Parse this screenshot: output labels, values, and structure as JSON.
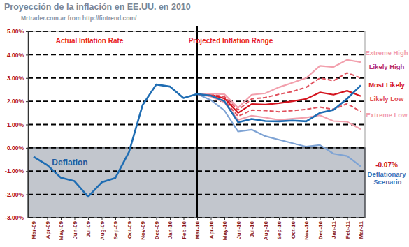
{
  "chart_data": {
    "type": "line",
    "title": "Proyección de la inflación en EE.UU. en 2010",
    "subtitle": "Mrtrader.com.ar from http://fintrend.com/",
    "categories": [
      "Mar-09",
      "Apr-09",
      "May-09",
      "Jun-09",
      "Jul-09",
      "Aug-09",
      "Sep-09",
      "Oct-09",
      "Nov-09",
      "Dec-09",
      "Jan-10",
      "Feb-10",
      "Mar-10",
      "Apr-10",
      "May-10",
      "Jun-10",
      "Jul-10",
      "Aug-10",
      "Sep-10",
      "Oct-10",
      "Nov-10",
      "Dec-10",
      "Jan-11",
      "Feb-11",
      "Mar-11"
    ],
    "series": [
      {
        "name": "Actual Inflation Rate",
        "color": "#1f6db3",
        "line_style": "solid",
        "values": [
          -0.38,
          -0.74,
          -1.28,
          -1.43,
          -2.1,
          -1.48,
          -1.29,
          -0.18,
          1.84,
          2.72,
          2.63,
          2.14,
          2.31,
          2.24,
          2.0,
          1.1,
          1.24,
          1.15,
          1.14,
          1.17,
          1.14,
          1.5,
          1.63,
          2.11,
          2.68
        ]
      },
      {
        "name": "Extreme High",
        "color": "#f2a0ad",
        "line_style": "solid",
        "values": [
          null,
          null,
          null,
          null,
          null,
          null,
          null,
          null,
          null,
          null,
          null,
          null,
          2.31,
          2.33,
          2.3,
          1.72,
          2.28,
          2.34,
          2.6,
          2.8,
          3.0,
          3.52,
          3.47,
          3.78,
          3.68
        ]
      },
      {
        "name": "Likely High",
        "color": "#e0505c",
        "line_style": "dashed",
        "values": [
          null,
          null,
          null,
          null,
          null,
          null,
          null,
          null,
          null,
          null,
          null,
          null,
          2.31,
          2.3,
          2.2,
          1.62,
          2.1,
          2.16,
          2.3,
          2.42,
          2.6,
          3.0,
          2.88,
          3.22,
          3.0
        ]
      },
      {
        "name": "Most Likely",
        "color": "#d4141f",
        "line_style": "solid",
        "values": [
          null,
          null,
          null,
          null,
          null,
          null,
          null,
          null,
          null,
          null,
          null,
          null,
          2.31,
          2.28,
          2.12,
          1.5,
          1.88,
          1.86,
          1.92,
          2.0,
          2.1,
          2.38,
          2.28,
          2.45,
          2.22
        ]
      },
      {
        "name": "Likely Low",
        "color": "#e0505c",
        "line_style": "dashed",
        "values": [
          null,
          null,
          null,
          null,
          null,
          null,
          null,
          null,
          null,
          null,
          null,
          null,
          2.31,
          2.25,
          2.02,
          1.36,
          1.62,
          1.6,
          1.55,
          1.6,
          1.65,
          1.75,
          1.65,
          1.9,
          1.55
        ]
      },
      {
        "name": "Extreme Low",
        "color": "#f2a0ad",
        "line_style": "solid",
        "values": [
          null,
          null,
          null,
          null,
          null,
          null,
          null,
          null,
          null,
          null,
          null,
          null,
          2.31,
          2.2,
          1.95,
          1.2,
          1.38,
          1.3,
          1.2,
          1.25,
          1.3,
          1.4,
          1.15,
          1.12,
          0.8
        ]
      },
      {
        "name": "Deflationary Scenario",
        "color": "#7ea3d4",
        "line_style": "solid",
        "values": [
          null,
          null,
          null,
          null,
          null,
          null,
          null,
          null,
          null,
          null,
          null,
          null,
          2.31,
          2.05,
          1.6,
          0.7,
          0.78,
          0.5,
          0.35,
          0.2,
          0.05,
          0.12,
          -0.25,
          -0.35,
          -0.8
        ]
      }
    ],
    "ylim": [
      -3,
      5
    ],
    "yticks": [
      {
        "value": -3,
        "label": "-3.00%"
      },
      {
        "value": -2,
        "label": "-2.00%"
      },
      {
        "value": -1,
        "label": "-1.00%"
      },
      {
        "value": 0,
        "label": "0.00%"
      },
      {
        "value": 1,
        "label": "1.00%"
      },
      {
        "value": 2,
        "label": "2.00%"
      },
      {
        "value": 3,
        "label": "3.00%"
      },
      {
        "value": 4,
        "label": "4.00%"
      },
      {
        "value": 5,
        "label": "5.00%"
      }
    ],
    "grid": true,
    "shaded_regions": [
      {
        "label": "Deflation",
        "y": [
          -3,
          0
        ]
      }
    ],
    "annotations": [
      "Projected Inflation Range",
      "-0.07%"
    ]
  }
}
